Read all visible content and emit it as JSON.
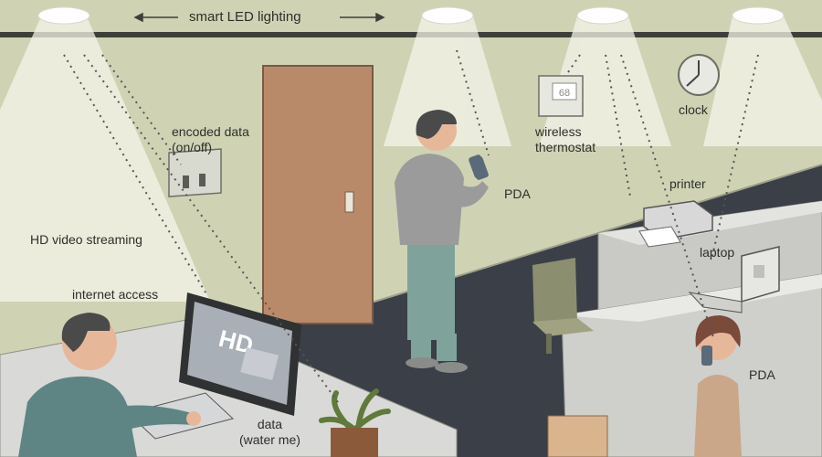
{
  "labels": {
    "smart_led_lighting": "smart LED lighting",
    "encoded_data": "encoded data\n(on/off)",
    "hd_video_streaming": "HD video streaming",
    "internet_access": "internet access",
    "data_water_me": "data\n(water me)",
    "pda_standing": "PDA",
    "wireless_thermostat": "wireless\nthermostat",
    "clock": "clock",
    "printer": "printer",
    "laptop": "laptop",
    "pda_seated": "PDA",
    "monitor_hd": "HD",
    "thermostat_reading": "68"
  },
  "colors": {
    "wall": "#cfd3b4",
    "ceiling_band": "#3d3f3a",
    "floor": "#3b3f47",
    "door": "#b98a6a",
    "desk": "#d9d9d7",
    "light_beam": "#f2f2e6",
    "person_shirt": "#8e8f8e",
    "person_pants": "#7fa39a",
    "skin": "#e7b79a",
    "hair": "#4a4a4a",
    "dotted_link": "#555555"
  },
  "icons": [
    "led-ceiling-light",
    "light-switch",
    "door",
    "monitor",
    "keyboard",
    "plant",
    "pda",
    "thermostat",
    "clock",
    "printer",
    "laptop",
    "chair"
  ]
}
